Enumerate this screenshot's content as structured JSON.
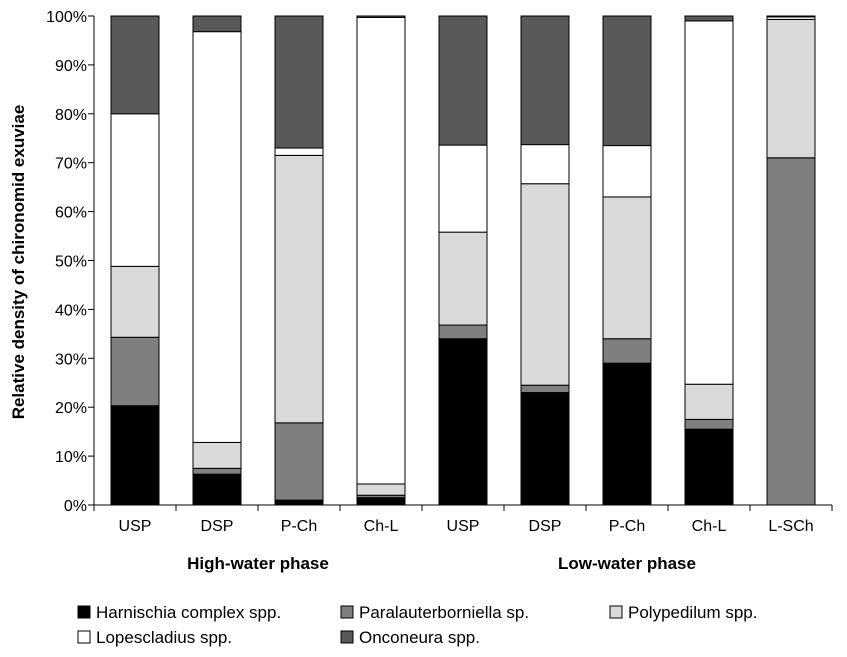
{
  "chart_data": {
    "type": "bar",
    "stacked": true,
    "percent": true,
    "ylabel": "Relative density of chironomid exuviae",
    "ylim": [
      0,
      100
    ],
    "yticks": [
      "0%",
      "10%",
      "20%",
      "30%",
      "40%",
      "50%",
      "60%",
      "70%",
      "80%",
      "90%",
      "100%"
    ],
    "categories": [
      "USP",
      "DSP",
      "P-Ch",
      "Ch-L",
      "USP",
      "DSP",
      "P-Ch",
      "Ch-L",
      "L-SCh"
    ],
    "groups": [
      {
        "label": "High-water phase",
        "categories": [
          "USP",
          "DSP",
          "P-Ch",
          "Ch-L"
        ]
      },
      {
        "label": "Low-water phase",
        "categories": [
          "USP",
          "DSP",
          "P-Ch",
          "Ch-L",
          "L-SCh"
        ]
      }
    ],
    "series": [
      {
        "name": "Harnischia complex spp.",
        "color": "#000000",
        "values": [
          20.3,
          6.3,
          1.0,
          1.5,
          34.0,
          23.0,
          29.0,
          15.5,
          0.0
        ]
      },
      {
        "name": "Paralauterborniella sp.",
        "color": "#7f7f7f",
        "values": [
          14.0,
          1.2,
          15.8,
          0.5,
          2.8,
          1.5,
          5.0,
          2.0,
          71.0
        ]
      },
      {
        "name": "Polypedilum spp.",
        "color": "#d9d9d9",
        "values": [
          14.5,
          5.3,
          54.7,
          2.3,
          19.0,
          41.2,
          29.0,
          7.2,
          28.3
        ]
      },
      {
        "name": "Lopescladius spp.",
        "color": "#ffffff",
        "values": [
          31.2,
          84.0,
          1.5,
          95.4,
          17.8,
          8.0,
          10.5,
          74.3,
          0.5
        ]
      },
      {
        "name": "Onconeura spp.",
        "color": "#595959",
        "values": [
          20.0,
          3.2,
          27.0,
          0.3,
          26.4,
          26.3,
          26.5,
          1.0,
          0.2
        ]
      }
    ],
    "legend_position": "bottom",
    "grid": false
  }
}
